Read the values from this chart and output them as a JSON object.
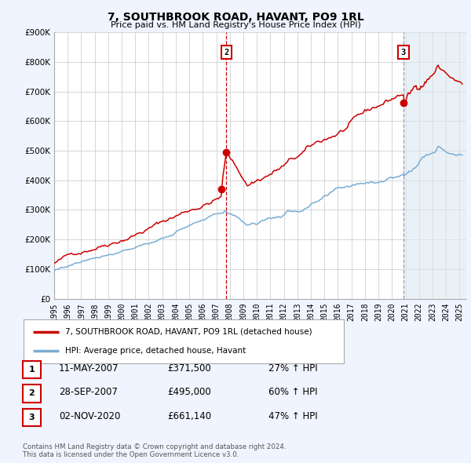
{
  "title": "7, SOUTHBROOK ROAD, HAVANT, PO9 1RL",
  "subtitle": "Price paid vs. HM Land Registry's House Price Index (HPI)",
  "bg_color": "#f0f4ff",
  "plot_bg_color": "#ffffff",
  "grid_color": "#d0d0d0",
  "red_line_color": "#cc0000",
  "blue_line_color": "#7aadd4",
  "ymin": 0,
  "ymax": 900000,
  "yticks": [
    0,
    100000,
    200000,
    300000,
    400000,
    500000,
    600000,
    700000,
    800000,
    900000
  ],
  "ytick_labels": [
    "£0",
    "£100K",
    "£200K",
    "£300K",
    "£400K",
    "£500K",
    "£600K",
    "£700K",
    "£800K",
    "£900K"
  ],
  "xmin": 1995,
  "xmax": 2025.5,
  "xticks": [
    1995,
    1996,
    1997,
    1998,
    1999,
    2000,
    2001,
    2002,
    2003,
    2004,
    2005,
    2006,
    2007,
    2008,
    2009,
    2010,
    2011,
    2012,
    2013,
    2014,
    2015,
    2016,
    2017,
    2018,
    2019,
    2020,
    2021,
    2022,
    2023,
    2024,
    2025
  ],
  "t1_x": 2007.36,
  "t1_y": 371500,
  "t2_x": 2007.74,
  "t2_y": 495000,
  "t3_x": 2020.84,
  "t3_y": 661140,
  "vline1_x": 2007.74,
  "vline2_x": 2020.84,
  "highlight_bg": "#dde8f0",
  "legend_line1": "7, SOUTHBROOK ROAD, HAVANT, PO9 1RL (detached house)",
  "legend_line2": "HPI: Average price, detached house, Havant",
  "table_rows": [
    [
      "1",
      "11-MAY-2007",
      "£371,500",
      "27% ↑ HPI"
    ],
    [
      "2",
      "28-SEP-2007",
      "£495,000",
      "60% ↑ HPI"
    ],
    [
      "3",
      "02-NOV-2020",
      "£661,140",
      "47% ↑ HPI"
    ]
  ],
  "footer": "Contains HM Land Registry data © Crown copyright and database right 2024.\nThis data is licensed under the Open Government Licence v3.0."
}
